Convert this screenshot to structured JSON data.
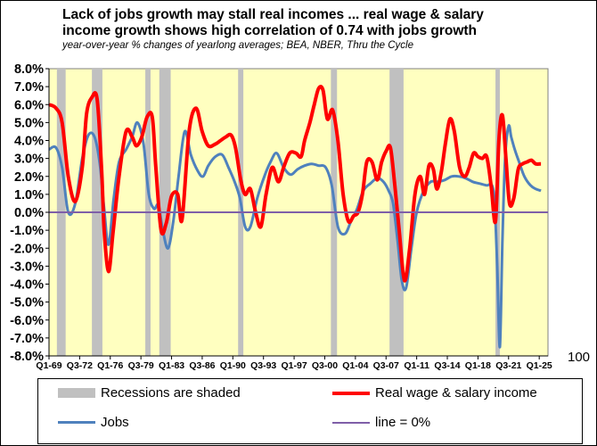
{
  "title_line1": "Lack of jobs growth may stall real incomes ... real wage & salary",
  "title_line2": "income growth shows high correlation of 0.74 with jobs growth",
  "subtitle": "year-over-year % changes of yearlong averages; BEA, NBER, Thru the Cycle",
  "colors": {
    "plot_bg": "#ffffc0",
    "recession": "#c0c0c0",
    "wages": "#ff0000",
    "jobs": "#4f81bd",
    "zero_line": "#7f5fa8"
  },
  "chart_data": {
    "type": "line",
    "title": "Lack of jobs growth may stall real incomes ... real wage & salary income growth shows high correlation of 0.74 with jobs growth",
    "ylim": [
      -8,
      8
    ],
    "y_ticks": [
      "8.0%",
      "7.0%",
      "6.0%",
      "5.0%",
      "4.0%",
      "3.0%",
      "2.0%",
      "1.0%",
      "0.0%",
      "-1.0%",
      "-2.0%",
      "-3.0%",
      "-4.0%",
      "-5.0%",
      "-6.0%",
      "-7.0%",
      "-8.0%"
    ],
    "x_range": [
      1969.0,
      2026.0
    ],
    "x_ticks": [
      {
        "label": "Q1-69",
        "x": 1969.0
      },
      {
        "label": "Q3-72",
        "x": 1972.5
      },
      {
        "label": "Q1-76",
        "x": 1976.0
      },
      {
        "label": "Q3-79",
        "x": 1979.5
      },
      {
        "label": "Q1-83",
        "x": 1983.0
      },
      {
        "label": "Q3-86",
        "x": 1986.5
      },
      {
        "label": "Q1-90",
        "x": 1990.0
      },
      {
        "label": "Q3-93",
        "x": 1993.5
      },
      {
        "label": "Q1-97",
        "x": 1997.0
      },
      {
        "label": "Q3-00",
        "x": 2000.5
      },
      {
        "label": "Q1-04",
        "x": 2004.0
      },
      {
        "label": "Q3-07",
        "x": 2007.5
      },
      {
        "label": "Q1-11",
        "x": 2011.0
      },
      {
        "label": "Q3-14",
        "x": 2014.5
      },
      {
        "label": "Q1-18",
        "x": 2018.0
      },
      {
        "label": "Q3-21",
        "x": 2021.5
      },
      {
        "label": "Q1-25",
        "x": 2025.0
      }
    ],
    "stray_label": "100",
    "recessions": [
      [
        1969.9,
        1970.9
      ],
      [
        1973.9,
        1975.1
      ],
      [
        1980.0,
        1980.6
      ],
      [
        1981.6,
        1982.9
      ],
      [
        1990.6,
        1991.2
      ],
      [
        2001.2,
        2001.9
      ],
      [
        2007.9,
        2009.5
      ],
      [
        2020.0,
        2020.5
      ]
    ],
    "zero_line": 0,
    "series": [
      {
        "name": "Real wage & salary income",
        "x": [
          1969.0,
          1969.8,
          1970.5,
          1971.2,
          1972.0,
          1972.8,
          1973.3,
          1973.9,
          1974.5,
          1975.0,
          1975.3,
          1975.8,
          1976.3,
          1977.0,
          1977.8,
          1978.5,
          1979.0,
          1979.6,
          1980.2,
          1980.8,
          1981.2,
          1981.8,
          1982.4,
          1983.0,
          1983.7,
          1984.2,
          1985.0,
          1985.8,
          1986.5,
          1987.2,
          1988.0,
          1988.6,
          1989.2,
          1989.8,
          1990.3,
          1990.9,
          1991.4,
          1992.0,
          1992.6,
          1993.2,
          1993.8,
          1994.5,
          1995.2,
          1995.8,
          1996.5,
          1997.2,
          1997.8,
          1998.2,
          1998.8,
          1999.3,
          1999.8,
          2000.3,
          2000.8,
          2001.4,
          2002.0,
          2002.6,
          2003.2,
          2003.8,
          2004.3,
          2004.8,
          2005.3,
          2005.9,
          2006.5,
          2007.0,
          2007.5,
          2008.0,
          2008.5,
          2009.0,
          2009.6,
          2010.2,
          2010.8,
          2011.4,
          2011.9,
          2012.4,
          2012.9,
          2013.3,
          2013.8,
          2014.3,
          2014.8,
          2015.3,
          2015.9,
          2016.5,
          2017.0,
          2017.5,
          2018.0,
          2018.5,
          2019.0,
          2019.5,
          2020.0,
          2020.4,
          2020.8,
          2021.2,
          2021.6,
          2022.1,
          2022.6,
          2023.1,
          2023.6,
          2024.1,
          2024.6,
          2025.2
        ],
        "y": [
          6.0,
          5.8,
          5.0,
          2.0,
          0.6,
          2.5,
          5.5,
          6.4,
          6.3,
          2.5,
          -1.0,
          -3.3,
          -1.2,
          2.0,
          4.5,
          4.2,
          3.7,
          4.2,
          5.3,
          5.3,
          2.5,
          -1.0,
          -0.6,
          0.9,
          1.0,
          -0.4,
          4.5,
          5.8,
          4.5,
          3.7,
          3.8,
          4.0,
          4.2,
          4.3,
          3.6,
          1.8,
          1.0,
          1.3,
          0.0,
          -0.8,
          1.0,
          2.5,
          1.7,
          2.5,
          3.3,
          3.3,
          3.1,
          4.0,
          5.0,
          6.0,
          6.9,
          6.8,
          5.2,
          5.7,
          4.0,
          1.0,
          -0.5,
          -0.2,
          0.0,
          1.0,
          2.8,
          2.8,
          1.8,
          2.8,
          3.4,
          3.6,
          1.5,
          -1.0,
          -3.8,
          -2.0,
          1.0,
          2.0,
          1.0,
          2.6,
          2.4,
          1.3,
          2.2,
          3.9,
          5.2,
          4.5,
          2.5,
          2.0,
          2.5,
          3.3,
          3.1,
          3.0,
          3.1,
          1.5,
          -0.5,
          4.1,
          5.4,
          3.0,
          0.5,
          0.8,
          2.4,
          2.7,
          2.8,
          2.9,
          2.7,
          2.7
        ]
      },
      {
        "name": "Jobs",
        "x": [
          1969.0,
          1969.8,
          1970.5,
          1971.2,
          1972.0,
          1972.8,
          1973.5,
          1974.2,
          1974.8,
          1975.3,
          1975.8,
          1976.4,
          1977.0,
          1977.8,
          1978.5,
          1979.1,
          1979.8,
          1980.4,
          1981.0,
          1981.5,
          1982.0,
          1982.6,
          1983.2,
          1983.8,
          1984.5,
          1985.2,
          1986.0,
          1986.6,
          1987.2,
          1988.0,
          1988.8,
          1989.5,
          1990.2,
          1990.8,
          1991.4,
          1992.0,
          1992.8,
          1993.6,
          1994.3,
          1995.0,
          1995.8,
          1996.6,
          1997.4,
          1998.2,
          1999.0,
          1999.8,
          2000.6,
          2001.3,
          2002.0,
          2002.8,
          2003.5,
          2004.2,
          2004.9,
          2005.7,
          2006.5,
          2007.2,
          2007.8,
          2008.3,
          2008.8,
          2009.3,
          2009.8,
          2010.4,
          2011.0,
          2011.8,
          2012.6,
          2013.4,
          2014.2,
          2015.0,
          2015.8,
          2016.6,
          2017.4,
          2018.2,
          2019.0,
          2019.6,
          2019.9,
          2020.2,
          2020.5,
          2020.8,
          2021.1,
          2021.5,
          2021.8,
          2022.2,
          2022.7,
          2023.3,
          2024.0,
          2024.6,
          2025.2
        ],
        "y": [
          3.5,
          3.6,
          2.5,
          0.0,
          0.5,
          3.0,
          4.3,
          4.2,
          2.7,
          0.2,
          -1.8,
          0.8,
          2.8,
          3.5,
          4.2,
          5.0,
          3.8,
          1.0,
          0.2,
          0.4,
          -1.0,
          -2.0,
          -0.5,
          2.0,
          4.5,
          3.2,
          2.3,
          2.0,
          2.6,
          3.1,
          3.2,
          2.5,
          1.7,
          0.8,
          -0.8,
          -0.8,
          0.8,
          2.0,
          2.8,
          3.3,
          2.5,
          2.1,
          2.4,
          2.6,
          2.7,
          2.6,
          2.5,
          1.5,
          -0.8,
          -1.2,
          -0.5,
          0.2,
          1.2,
          1.6,
          1.9,
          1.7,
          1.2,
          0.5,
          -1.5,
          -3.8,
          -4.2,
          -2.0,
          0.0,
          1.2,
          1.7,
          1.7,
          1.8,
          2.0,
          2.0,
          1.9,
          1.7,
          1.6,
          1.5,
          1.5,
          0.5,
          -3.0,
          -7.5,
          -1.5,
          3.0,
          4.8,
          4.2,
          3.5,
          2.8,
          2.0,
          1.5,
          1.3,
          1.2
        ]
      }
    ],
    "legend": [
      {
        "label": "Recessions are shaded",
        "kind": "recession"
      },
      {
        "label": "Real wage & salary income",
        "kind": "wages"
      },
      {
        "label": "Jobs",
        "kind": "jobs"
      },
      {
        "label": "line = 0%",
        "kind": "zero"
      }
    ]
  }
}
